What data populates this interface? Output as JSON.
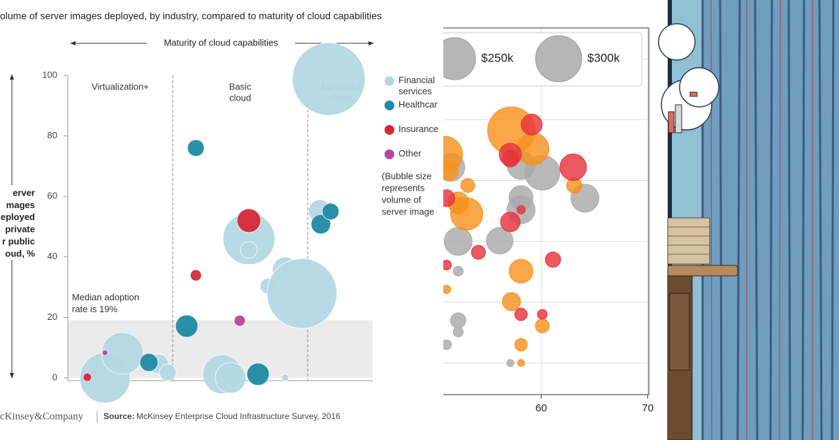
{
  "chart_data": [
    {
      "type": "bubble",
      "title": "olume of server images deployed, by industry, compared to maturity of cloud capabilities",
      "x_axis_label": "Maturity of cloud capabilities",
      "y_axis_label": [
        "erver",
        "mages",
        "eployed",
        "private",
        "r public",
        "oud, %"
      ],
      "xlim": [
        0,
        100
      ],
      "ylim": [
        0,
        100
      ],
      "yticks": [
        0,
        20,
        40,
        60,
        80,
        100
      ],
      "sections": [
        {
          "label": [
            "Virtualization+"
          ],
          "end": 34.4
        },
        {
          "label": [
            "Basic",
            "cloud"
          ],
          "end": 78.7
        },
        {
          "label": [
            "Advanced",
            "cloud"
          ]
        }
      ],
      "median": {
        "value": 19,
        "label": [
          "Median adoption",
          "rate is 19%"
        ]
      },
      "series": [
        {
          "name": "Financial services",
          "color": "#b3d8e4",
          "x": [
            85.6,
            12.2,
            17.9,
            29.8,
            32.8,
            59.4,
            59.4,
            71.3,
            65.6,
            76.8,
            50.7,
            53.4,
            71.3,
            82.6
          ],
          "values": [
            98.8,
            0,
            8.1,
            4.6,
            1.8,
            46,
            42.3,
            35.8,
            30.3,
            27.9,
            1.2,
            0,
            0,
            55.2
          ],
          "sizes": [
            52,
            36,
            30,
            14,
            12,
            37,
            12,
            18,
            11,
            50,
            28,
            22,
            5,
            16
          ]
        },
        {
          "name": "Healthcar",
          "color": "#1f8aa3",
          "x": [
            42,
            39,
            26.6,
            62.4,
            83,
            86.2
          ],
          "values": [
            76,
            17.1,
            5.1,
            1.2,
            50.8,
            55
          ],
          "sizes": [
            12,
            16,
            13,
            16,
            14,
            12
          ]
        },
        {
          "name": "Insurance",
          "color": "#d42a36",
          "x": [
            59.4,
            42,
            6.4
          ],
          "values": [
            52,
            33.9,
            0.2
          ],
          "sizes": [
            17,
            8,
            6
          ]
        },
        {
          "name": "Other",
          "color": "#b8479b",
          "x": [
            56.4,
            12.2
          ],
          "values": [
            18.9,
            8.3
          ],
          "sizes": [
            8,
            4
          ]
        }
      ],
      "note": [
        "(Bubble size",
        "represents",
        "volume of",
        "server image"
      ],
      "source_logo": "cKinsey&Company",
      "source_label": "Source:",
      "source": "McKinsey Enterprise Cloud Infrastructure Survey, 2016"
    },
    {
      "type": "bubble",
      "xlim": [
        50.8,
        70.1
      ],
      "xticks": [
        60,
        70
      ],
      "ylim": [
        14.8,
        75.1
      ],
      "ygrid": [
        20,
        30,
        40,
        50,
        60,
        70
      ],
      "size_legend": [
        {
          "value": 250000,
          "label": "$250k"
        },
        {
          "value": 300000,
          "label": "$300k"
        }
      ],
      "series": [
        {
          "color": "#a9a9a9",
          "x": [
            51.5,
            58.1,
            60.1,
            58.1,
            58.1,
            64.1,
            52.2,
            52.2,
            56.1,
            52.2,
            52.2,
            52.2,
            51.1,
            57.1
          ],
          "values": [
            52.2,
            52.5,
            51.3,
            47.2,
            45.2,
            47.1,
            45.9,
            40,
            40.1,
            35.1,
            27,
            25.1,
            23,
            20
          ],
          "sizes": [
            110000,
            110000,
            172000,
            80000,
            110000,
            110000,
            39700,
            110000,
            99400,
            13500,
            33000,
            13500,
            13500,
            6900
          ]
        },
        {
          "color": "#f7931e",
          "x": [
            57.2,
            59.2,
            50.9,
            51.3,
            53.1,
            53,
            52.2,
            63.1,
            58.1,
            57.2,
            60.1,
            58.1,
            51.1,
            58.1
          ],
          "values": [
            58.2,
            55.2,
            54.3,
            51.6,
            49.2,
            44.5,
            46.4,
            49.2,
            35.1,
            30.1,
            26.1,
            23,
            32.1,
            20
          ],
          "sizes": [
            318000,
            146000,
            186000,
            54000,
            27500,
            146000,
            62000,
            33000,
            80000,
            46500,
            27500,
            22300,
            10000,
            6900
          ]
        },
        {
          "color": "#e8353d",
          "x": [
            59.1,
            57.1,
            57.1,
            63,
            57.1,
            58.1,
            54.1,
            61.1,
            51.1,
            58.1,
            60.1,
            51.1
          ],
          "values": [
            59.2,
            54.3,
            53.6,
            52.2,
            43.2,
            45.2,
            38.2,
            37,
            36.1,
            28,
            28,
            47.1
          ],
          "sizes": [
            62000,
            70500,
            39700,
            99400,
            54000,
            10000,
            27500,
            33000,
            13500,
            22300,
            13500,
            39700
          ]
        }
      ]
    }
  ]
}
